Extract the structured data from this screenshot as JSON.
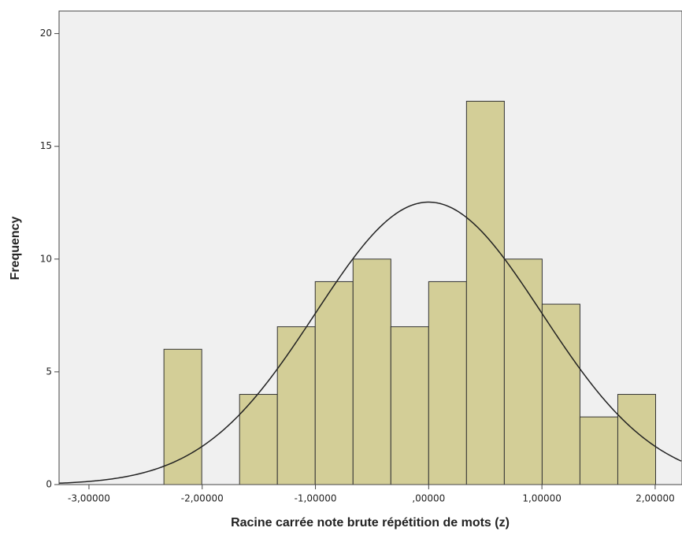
{
  "chart_data": {
    "type": "histogram",
    "xlabel": "Racine carrée note brute répétition de mots (z)",
    "ylabel": "Frequency",
    "bins": [
      -2.338,
      -2.004,
      -1.67,
      -1.336,
      -1.002,
      -0.668,
      -0.334,
      0.0,
      0.334,
      0.668,
      1.002,
      1.336,
      1.67,
      2.004
    ],
    "values": [
      6,
      0,
      4,
      7,
      9,
      10,
      7,
      9,
      17,
      10,
      8,
      3,
      4
    ],
    "color": "#d3ce97",
    "curve": {
      "mean": 0,
      "std": 1
    },
    "xlim": [
      -3.264,
      2.237
    ],
    "ylim": [
      0,
      21
    ],
    "xticks": [
      {
        "value": -3,
        "label": "-3,00000"
      },
      {
        "value": -2,
        "label": "-2,00000"
      },
      {
        "value": -1,
        "label": "-1,00000"
      },
      {
        "value": 0,
        "label": ",00000"
      },
      {
        "value": 1,
        "label": "1,00000"
      },
      {
        "value": 2,
        "label": "2,00000"
      }
    ],
    "yticks": [
      0,
      5,
      10,
      15,
      20
    ]
  }
}
